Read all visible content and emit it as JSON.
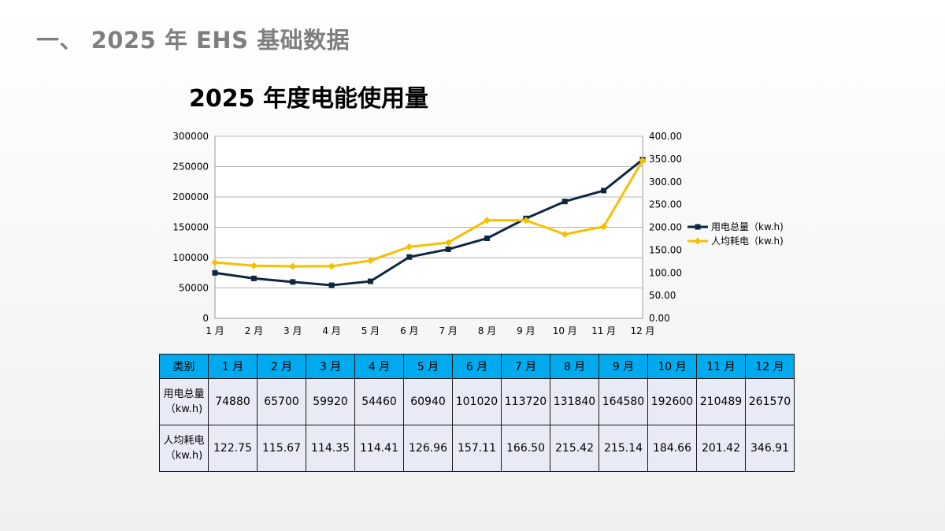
{
  "page": {
    "section_title": "一、 2025 年 EHS 基础数据"
  },
  "chart_data": {
    "type": "line",
    "title": "2025 年度电能使用量",
    "categories": [
      "1 月",
      "2 月",
      "3 月",
      "4 月",
      "5 月",
      "6 月",
      "7 月",
      "8 月",
      "9 月",
      "10 月",
      "11 月",
      "12 月"
    ],
    "y_left": {
      "min": 0,
      "max": 300000,
      "ticks": [
        "0",
        "50000",
        "100000",
        "150000",
        "200000",
        "250000",
        "300000"
      ]
    },
    "y_right": {
      "min": 0,
      "max": 400,
      "ticks": [
        "0.00",
        "50.00",
        "100.00",
        "150.00",
        "200.00",
        "250.00",
        "300.00",
        "350.00",
        "400.00"
      ]
    },
    "grid": true,
    "legend_position": "right",
    "series": [
      {
        "name": "用电总量（kw.h)",
        "axis": "left",
        "color": "#0e2841",
        "marker": "square",
        "values": [
          74880,
          65700,
          59920,
          54460,
          60940,
          101020,
          113720,
          131840,
          164580,
          192600,
          210489,
          261570
        ]
      },
      {
        "name": "人均耗电（kw.h)",
        "axis": "right",
        "color": "#f5c000",
        "marker": "diamond",
        "values": [
          122.75,
          115.67,
          114.35,
          114.41,
          126.96,
          157.11,
          166.5,
          215.42,
          215.14,
          184.66,
          201.42,
          346.91
        ]
      }
    ]
  },
  "table": {
    "header_label": "类别",
    "months": [
      "1 月",
      "2 月",
      "3 月",
      "4 月",
      "5 月",
      "6 月",
      "7 月",
      "8 月",
      "9 月",
      "10 月",
      "11 月",
      "12 月"
    ],
    "rows": [
      {
        "label_line1": "用电总量",
        "label_line2": "（kw.h)",
        "values": [
          "74880",
          "65700",
          "59920",
          "54460",
          "60940",
          "101020",
          "113720",
          "131840",
          "164580",
          "192600",
          "210489",
          "261570"
        ]
      },
      {
        "label_line1": "人均耗电",
        "label_line2": "（kw.h)",
        "values": [
          "122.75",
          "115.67",
          "114.35",
          "114.41",
          "126.96",
          "157.11",
          "166.50",
          "215.42",
          "215.14",
          "184.66",
          "201.42",
          "346.91"
        ]
      }
    ]
  },
  "colors": {
    "header_bg": "#00aaee",
    "cell_bg": "#e8ebf6",
    "title_gray": "#7f7f7f"
  }
}
